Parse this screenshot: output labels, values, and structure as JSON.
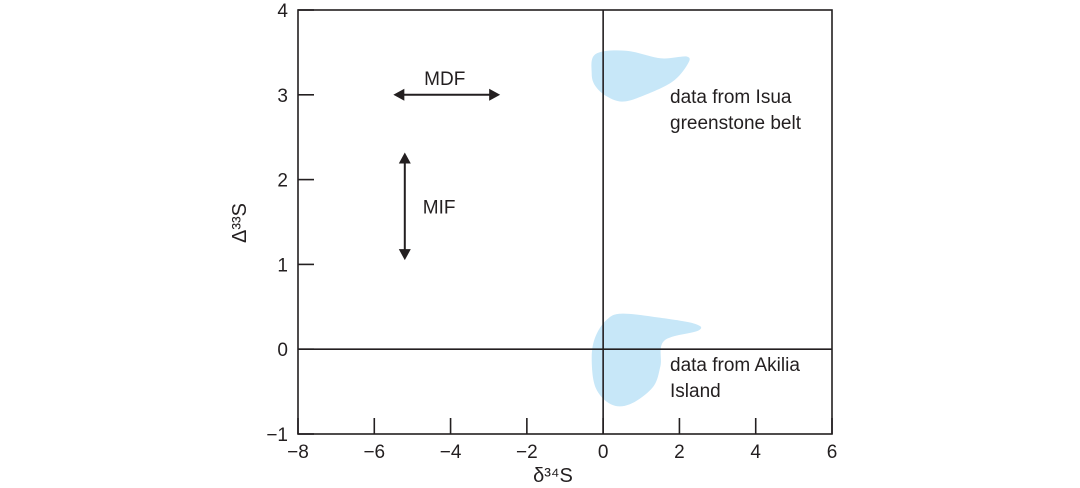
{
  "chart_data": {
    "type": "scatter",
    "title": "",
    "xlabel": "δ³⁴S",
    "ylabel": "Δ³³S",
    "xlim": [
      -8,
      6
    ],
    "ylim": [
      -1,
      4
    ],
    "x_ticks": [
      -8,
      -6,
      -4,
      -2,
      0,
      2,
      4,
      6
    ],
    "y_ticks": [
      -1,
      0,
      1,
      2,
      3,
      4
    ],
    "x_tick_labels": [
      "−8",
      "−6",
      "−4",
      "−2",
      "0",
      "2",
      "4",
      "6"
    ],
    "y_tick_labels": [
      "−1",
      "0",
      "1",
      "2",
      "3",
      "4"
    ],
    "grid": false,
    "reference_lines": {
      "x": 0,
      "y": 0
    },
    "regions": [
      {
        "label_lines": [
          "data from Isua",
          "greenstone belt"
        ],
        "color": "#c7e7f8",
        "outline": [
          [
            -0.3,
            3.25
          ],
          [
            -0.2,
            3.48
          ],
          [
            0.6,
            3.52
          ],
          [
            1.5,
            3.43
          ],
          [
            2.2,
            3.45
          ],
          [
            2.2,
            3.35
          ],
          [
            1.8,
            3.15
          ],
          [
            1.0,
            2.98
          ],
          [
            0.5,
            2.92
          ],
          [
            0.1,
            2.98
          ],
          [
            -0.2,
            3.1
          ]
        ]
      },
      {
        "label_lines": [
          "data from Akilia",
          "Island"
        ],
        "color": "#c7e7f8",
        "outline": [
          [
            -0.2,
            0.15
          ],
          [
            0.1,
            0.35
          ],
          [
            0.5,
            0.42
          ],
          [
            1.5,
            0.37
          ],
          [
            2.4,
            0.3
          ],
          [
            2.5,
            0.22
          ],
          [
            1.6,
            0.1
          ],
          [
            1.5,
            -0.2
          ],
          [
            1.3,
            -0.45
          ],
          [
            0.7,
            -0.65
          ],
          [
            0.2,
            -0.65
          ],
          [
            -0.2,
            -0.45
          ],
          [
            -0.3,
            -0.1
          ]
        ]
      }
    ],
    "arrows": [
      {
        "label": "MDF",
        "direction": "horizontal",
        "from": [
          -5.5,
          3.0
        ],
        "to": [
          -2.7,
          3.0
        ]
      },
      {
        "label": "MIF",
        "direction": "vertical",
        "from": [
          -5.2,
          1.05
        ],
        "to": [
          -5.2,
          2.32
        ]
      }
    ],
    "colors": {
      "axis": "#231f20",
      "region": "#c7e7f8"
    }
  }
}
